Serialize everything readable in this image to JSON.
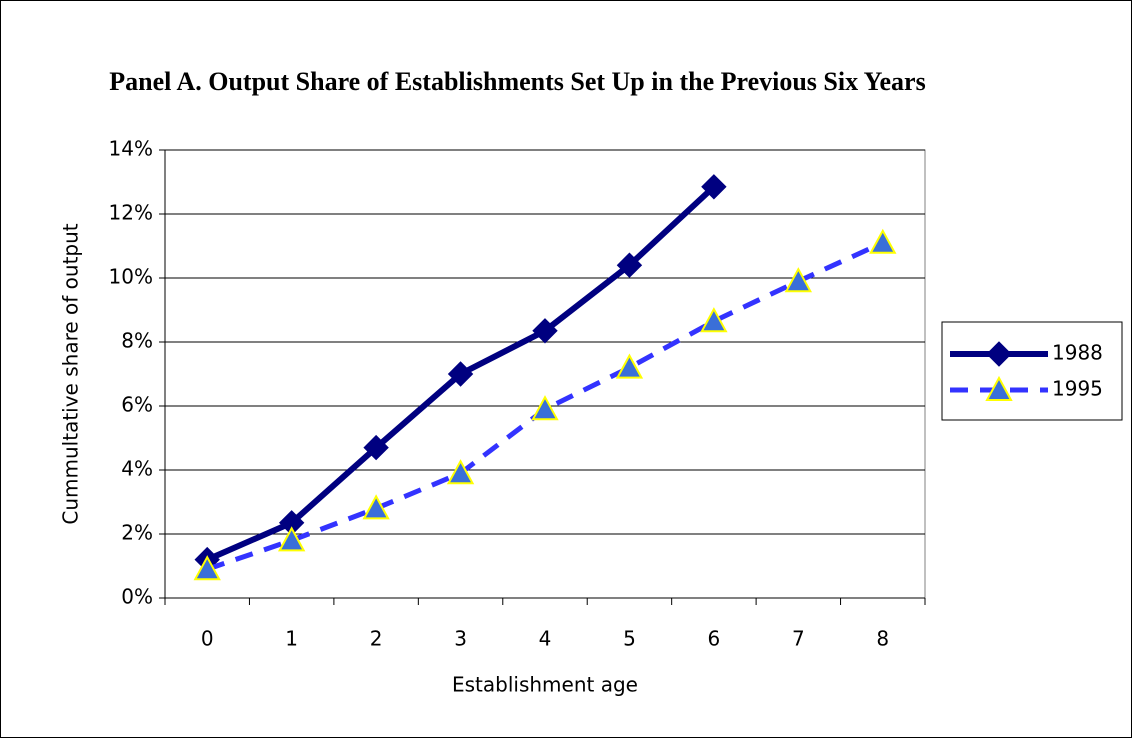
{
  "chart_data": {
    "type": "line",
    "title": "Panel A. Output Share of Establishments Set Up in the Previous Six Years",
    "x_label": "Establishment age",
    "y_label": "Cummultative share of output",
    "categories": [
      "0",
      "1",
      "2",
      "3",
      "4",
      "5",
      "6",
      "7",
      "8"
    ],
    "series": [
      {
        "name": "1988",
        "color": "#000080",
        "marker": "diamond",
        "dash": false,
        "values": [
          1.2,
          2.35,
          4.7,
          7.0,
          8.35,
          10.4,
          12.85,
          null,
          null
        ]
      },
      {
        "name": "1995",
        "color": "#3333ff",
        "marker": "triangle",
        "dash": true,
        "values": [
          0.9,
          1.8,
          2.8,
          3.9,
          5.9,
          7.2,
          8.65,
          9.9,
          11.1
        ]
      }
    ],
    "ylim": [
      0,
      14
    ],
    "yticks": [
      {
        "value": 0,
        "label": "0%"
      },
      {
        "value": 2,
        "label": "2%"
      },
      {
        "value": 4,
        "label": "4%"
      },
      {
        "value": 6,
        "label": "6%"
      },
      {
        "value": 8,
        "label": "8%"
      },
      {
        "value": 10,
        "label": "10%"
      },
      {
        "value": 12,
        "label": "12%"
      },
      {
        "value": 14,
        "label": "14%"
      }
    ],
    "grid": true
  }
}
